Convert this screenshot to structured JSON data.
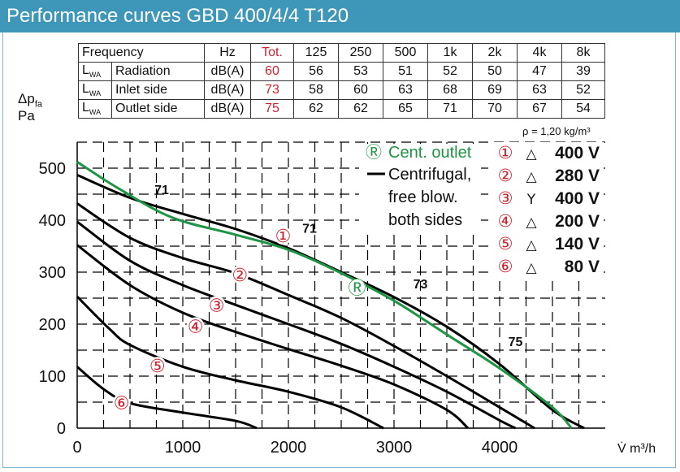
{
  "title": "Performance curves GBD 400/4/4 T120",
  "table": {
    "header": [
      "Frequency",
      "Hz",
      "Tot.",
      "125",
      "250",
      "500",
      "1k",
      "2k",
      "4k",
      "8k"
    ],
    "rows": [
      {
        "sub": "WA",
        "name": "Radiation",
        "unit": "dB(A)",
        "tot": "60",
        "values": [
          "56",
          "53",
          "51",
          "52",
          "50",
          "47",
          "39"
        ]
      },
      {
        "sub": "WA",
        "name": "Inlet side",
        "unit": "dB(A)",
        "tot": "73",
        "values": [
          "58",
          "60",
          "63",
          "68",
          "69",
          "63",
          "52"
        ]
      },
      {
        "sub": "WA",
        "name": "Outlet side",
        "unit": "dB(A)",
        "tot": "75",
        "values": [
          "62",
          "62",
          "65",
          "71",
          "70",
          "67",
          "54"
        ]
      }
    ]
  },
  "density_note": "ρ = 1,20 kg/m³",
  "colors": {
    "title_bg": "#3e97b8",
    "green": "#1e9445",
    "red": "#d0202e",
    "grid": "#000000"
  },
  "chart_data": {
    "type": "line",
    "ylabel_main": "Δp",
    "ylabel_sub": "fa",
    "ylabel_unit": "Pa",
    "xlabel": "V̇  m³/h",
    "xlim": [
      0,
      5000
    ],
    "ylim": [
      0,
      550
    ],
    "xticks": [
      0,
      1000,
      2000,
      3000,
      4000
    ],
    "yticks": [
      0,
      100,
      200,
      300,
      400,
      500
    ],
    "legend": {
      "green_symbol": "Ⓡ",
      "green_label": "Cent. outlet",
      "black_lines": [
        "Centrifugal,",
        "free blow.",
        "both sides"
      ],
      "speeds": [
        {
          "symbol": "①",
          "connection": "△",
          "voltage": "400 V"
        },
        {
          "symbol": "②",
          "connection": "△",
          "voltage": "280 V"
        },
        {
          "symbol": "③",
          "connection": "Y",
          "voltage": "400 V"
        },
        {
          "symbol": "④",
          "connection": "△",
          "voltage": "200 V"
        },
        {
          "symbol": "⑤",
          "connection": "△",
          "voltage": "140 V"
        },
        {
          "symbol": "⑥",
          "connection": "△",
          "voltage": "80 V"
        }
      ]
    },
    "series": [
      {
        "name": "①",
        "color": "#000000",
        "label_at": [
          1950,
          370
        ],
        "points": [
          [
            0,
            487
          ],
          [
            500,
            443
          ],
          [
            1000,
            412
          ],
          [
            1500,
            383
          ],
          [
            2000,
            346
          ],
          [
            2500,
            300
          ],
          [
            3000,
            252
          ],
          [
            3500,
            195
          ],
          [
            4000,
            123
          ],
          [
            4500,
            35
          ],
          [
            4800,
            0
          ]
        ]
      },
      {
        "name": "②",
        "color": "#000000",
        "label_at": [
          1540,
          295
        ],
        "points": [
          [
            0,
            432
          ],
          [
            500,
            366
          ],
          [
            1000,
            327
          ],
          [
            1500,
            298
          ],
          [
            2000,
            256
          ],
          [
            2500,
            212
          ],
          [
            3000,
            158
          ],
          [
            3500,
            100
          ],
          [
            4000,
            40
          ],
          [
            4330,
            0
          ]
        ]
      },
      {
        "name": "③",
        "color": "#000000",
        "label_at": [
          1320,
          237
        ],
        "points": [
          [
            0,
            397
          ],
          [
            500,
            322
          ],
          [
            1000,
            275
          ],
          [
            1500,
            237
          ],
          [
            2000,
            200
          ],
          [
            2500,
            162
          ],
          [
            3000,
            118
          ],
          [
            3500,
            70
          ],
          [
            4000,
            15
          ],
          [
            4150,
            0
          ]
        ]
      },
      {
        "name": "④",
        "color": "#000000",
        "label_at": [
          1120,
          196
        ],
        "points": [
          [
            0,
            352
          ],
          [
            500,
            275
          ],
          [
            1000,
            222
          ],
          [
            1500,
            185
          ],
          [
            2000,
            152
          ],
          [
            2500,
            120
          ],
          [
            3000,
            84
          ],
          [
            3500,
            35
          ],
          [
            3700,
            0
          ]
        ]
      },
      {
        "name": "⑤",
        "color": "#000000",
        "label_at": [
          760,
          120
        ],
        "points": [
          [
            0,
            253
          ],
          [
            300,
            192
          ],
          [
            500,
            160
          ],
          [
            1000,
            118
          ],
          [
            1500,
            92
          ],
          [
            2000,
            70
          ],
          [
            2500,
            40
          ],
          [
            2900,
            0
          ]
        ]
      },
      {
        "name": "⑥",
        "color": "#000000",
        "label_at": [
          420,
          49
        ],
        "points": [
          [
            0,
            118
          ],
          [
            250,
            75
          ],
          [
            500,
            48
          ],
          [
            1000,
            30
          ],
          [
            1500,
            14
          ],
          [
            1700,
            0
          ]
        ]
      },
      {
        "name": "Ⓡ",
        "color": "#1e9445",
        "label_at": [
          2650,
          270
        ],
        "points": [
          [
            0,
            512
          ],
          [
            400,
            460
          ],
          [
            900,
            405
          ],
          [
            1500,
            372
          ],
          [
            2000,
            343
          ],
          [
            2500,
            298
          ],
          [
            3000,
            245
          ],
          [
            3500,
            180
          ],
          [
            4000,
            115
          ],
          [
            4500,
            40
          ],
          [
            4680,
            0
          ]
        ]
      }
    ],
    "annotations": [
      {
        "text": "71",
        "x": 800,
        "y": 459
      },
      {
        "text": "71",
        "x": 2200,
        "y": 385
      },
      {
        "text": "73",
        "x": 3250,
        "y": 278
      },
      {
        "text": "75",
        "x": 4150,
        "y": 167
      }
    ]
  }
}
